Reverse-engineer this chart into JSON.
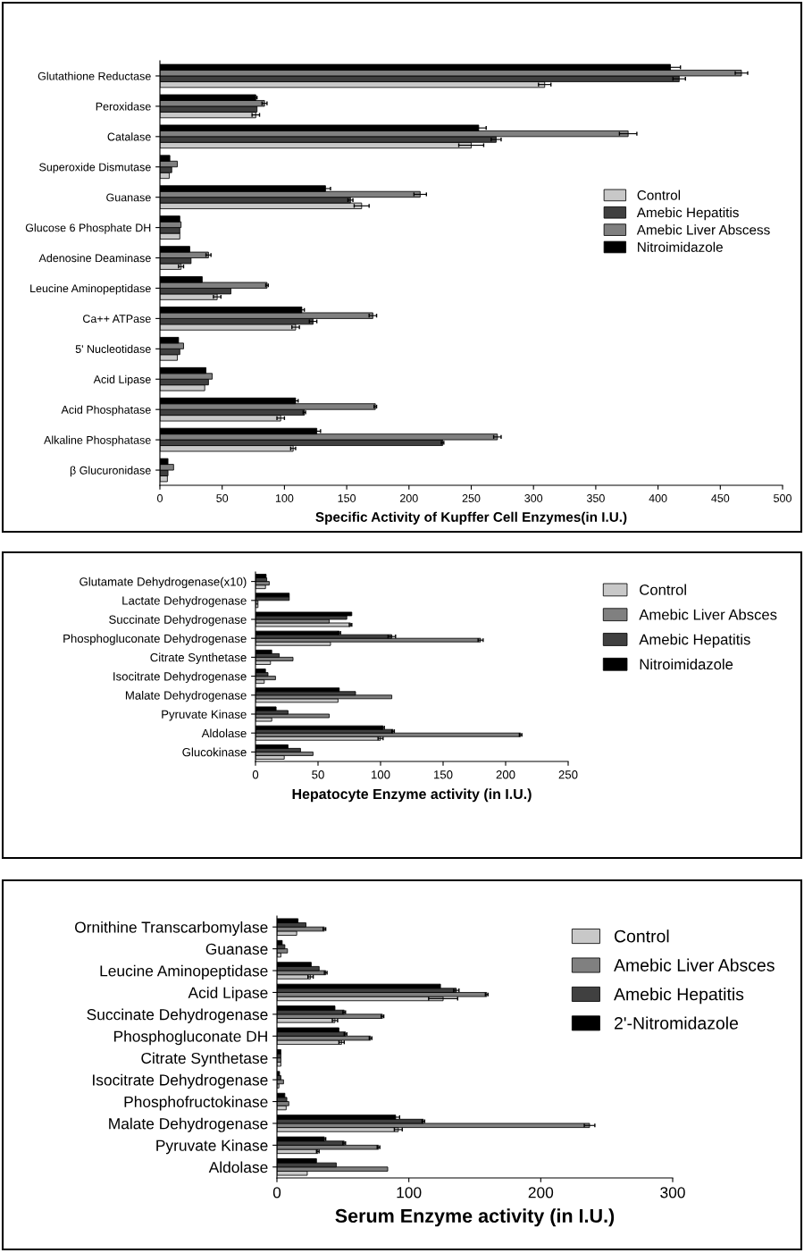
{
  "chart_data": [
    {
      "type": "bar",
      "orientation": "horizontal",
      "xlabel": "Specific Activity of Kupffer Cell Enzymes(in I.U.)",
      "categories": [
        "Glutathione Reductase",
        "Peroxidase",
        "Catalase",
        "Superoxide Dismutase",
        "Guanase",
        "Glucose 6 Phosphate DH",
        "Adenosine Deaminase",
        "Leucine Aminopeptidase",
        "Ca++ ATPase",
        "5' Nucleotidase",
        "Acid Lipase",
        "Acid Phosphatase",
        "Alkaline Phosphatase",
        "β Glucuronidase"
      ],
      "xlim": [
        0,
        500
      ],
      "xticks": [
        0,
        50,
        100,
        150,
        200,
        250,
        300,
        350,
        400,
        450,
        500
      ],
      "grid": false,
      "legend": "right",
      "series": [
        {
          "name": "Control",
          "color": "#c8c8c8",
          "values": [
            309,
            77,
            250,
            7.5,
            162,
            16,
            17,
            46,
            109,
            14,
            36,
            97,
            107,
            6
          ],
          "errors": [
            5,
            3,
            10,
            null,
            6,
            null,
            2,
            3,
            3,
            null,
            null,
            3,
            2,
            null
          ]
        },
        {
          "name": "Amebic Hepatitis",
          "color": "#404040",
          "values": [
            417,
            78,
            270,
            9.5,
            153,
            16,
            25,
            57,
            123,
            16,
            39,
            116,
            227,
            6.5
          ],
          "errors": [
            5,
            null,
            4,
            null,
            2,
            null,
            null,
            null,
            3,
            null,
            null,
            1,
            1,
            null
          ]
        },
        {
          "name": "Amebic Liver Abscess",
          "color": "#808080",
          "values": [
            467,
            84,
            376,
            14,
            209,
            17,
            39,
            86,
            171,
            19,
            42,
            173,
            271,
            11
          ],
          "errors": [
            5,
            2,
            7,
            null,
            5,
            null,
            2,
            1,
            3,
            null,
            null,
            1,
            3,
            null
          ]
        },
        {
          "name": "Nitroimidazole",
          "color": "#000000",
          "values": [
            410,
            77,
            256,
            8,
            133,
            16,
            24,
            34,
            114,
            15,
            37,
            109,
            126,
            6.5
          ],
          "errors": [
            8,
            1,
            6,
            null,
            4,
            null,
            null,
            null,
            2,
            null,
            null,
            2,
            3,
            null
          ]
        }
      ]
    },
    {
      "type": "bar",
      "orientation": "horizontal",
      "xlabel": "Hepatocyte Enzyme activity (in I.U.)",
      "categories": [
        "Glutamate Dehydrogenase(x10)",
        "Lactate Dehydrogenase",
        "Succinate Dehydrogenase",
        "Phosphogluconate Dehydrogenase",
        "Citrate Synthetase",
        "Isocitrate Dehydrogenase",
        "Malate Dehydrogenase",
        "Pyruvate Kinase",
        "Aldolase",
        "Glucokinase"
      ],
      "xlim": [
        0,
        250
      ],
      "xticks": [
        0,
        50,
        100,
        150,
        200,
        250
      ],
      "grid": false,
      "legend": "top right",
      "series": [
        {
          "name": "Control",
          "color": "#c8c8c8",
          "values": [
            8,
            2,
            76,
            60,
            12,
            7,
            66,
            13,
            100,
            23
          ],
          "errors": [
            null,
            null,
            1,
            null,
            null,
            null,
            null,
            null,
            2,
            null
          ]
        },
        {
          "name": "Amebic Liver Absces",
          "color": "#808080",
          "values": [
            11,
            2,
            59,
            180,
            30,
            16,
            109,
            59,
            212,
            46
          ],
          "errors": [
            null,
            null,
            null,
            2,
            null,
            null,
            null,
            null,
            1,
            null
          ]
        },
        {
          "name": "Amebic Hepatitis",
          "color": "#404040",
          "values": [
            9,
            27,
            73,
            109,
            19,
            10,
            80,
            26,
            110,
            36
          ],
          "errors": [
            null,
            null,
            null,
            3,
            null,
            null,
            null,
            null,
            1,
            null
          ]
        },
        {
          "name": "Nitroimidazole",
          "color": "#000000",
          "values": [
            8.5,
            27,
            77,
            67,
            13,
            8,
            67,
            16.5,
            102,
            26
          ],
          "errors": [
            null,
            null,
            null,
            1,
            null,
            null,
            null,
            null,
            1,
            null
          ]
        }
      ]
    },
    {
      "type": "bar",
      "orientation": "horizontal",
      "xlabel": "Serum Enzyme activity (in I.U.)",
      "categories": [
        "Ornithine Transcarbomylase",
        "Guanase",
        "Leucine Aminopeptidase",
        "Acid Lipase",
        "Succinate Dehydrogenase",
        "Phosphogluconate DH",
        "Citrate Synthetase",
        "Isocitrate Dehydrogenase",
        "Phosphofructokinase",
        "Malate Dehydrogenase",
        "Pyruvate Kinase",
        "Aldolase"
      ],
      "xlim": [
        0,
        300
      ],
      "xticks": [
        0,
        100,
        200,
        300
      ],
      "grid": false,
      "legend": "top right",
      "series": [
        {
          "name": "Control",
          "color": "#c8c8c8",
          "values": [
            15,
            3,
            25.5,
            126,
            44,
            49,
            3,
            1.5,
            7,
            92,
            31,
            23
          ],
          "errors": [
            null,
            null,
            2,
            11,
            2,
            2,
            null,
            null,
            null,
            3,
            1,
            null
          ]
        },
        {
          "name": "Amebic Liver Absces",
          "color": "#808080",
          "values": [
            36,
            8,
            37,
            159,
            80,
            71,
            3,
            5,
            9,
            237,
            77,
            84
          ],
          "errors": [
            1,
            null,
            1,
            1,
            1,
            1,
            null,
            null,
            null,
            4,
            1,
            null
          ]
        },
        {
          "name": "Amebic Hepatitis",
          "color": "#404040",
          "values": [
            22,
            6,
            32,
            136,
            51,
            52,
            3,
            3,
            7.5,
            111,
            51,
            45
          ],
          "errors": [
            null,
            null,
            null,
            2,
            1,
            1,
            null,
            null,
            null,
            1,
            1,
            null
          ]
        },
        {
          "name": "2'-Nitromidazole",
          "color": "#000000",
          "values": [
            16,
            4,
            26,
            124,
            44,
            47,
            3,
            2,
            6,
            90,
            36,
            30
          ],
          "errors": [
            null,
            null,
            null,
            null,
            null,
            null,
            null,
            null,
            null,
            3,
            1,
            null
          ]
        }
      ]
    }
  ]
}
